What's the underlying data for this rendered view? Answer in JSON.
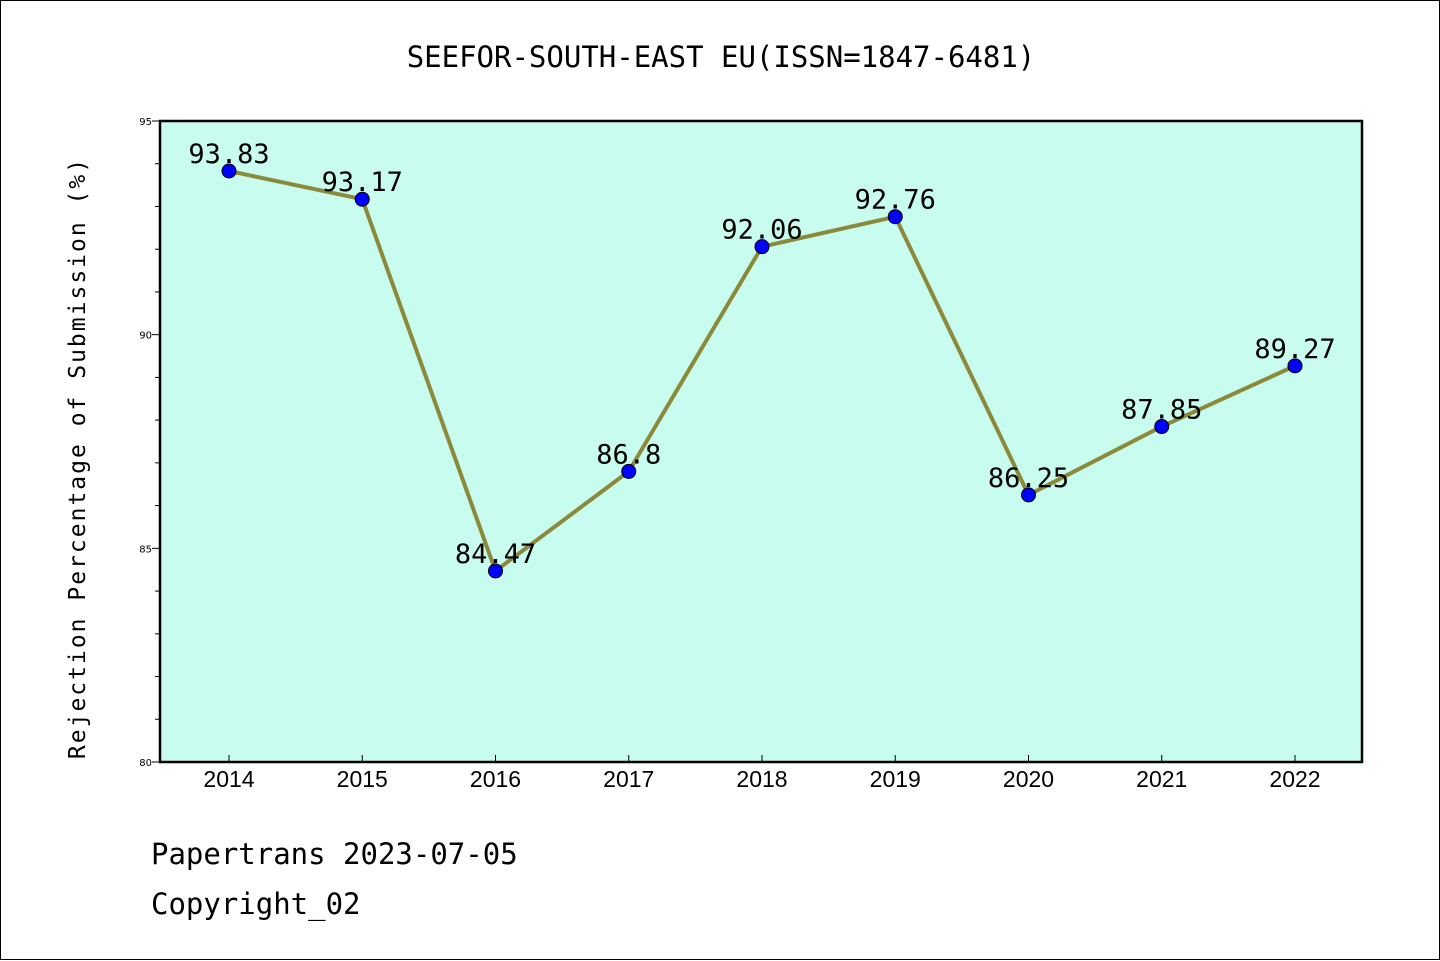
{
  "chart_data": {
    "type": "line",
    "title": "SEEFOR-SOUTH-EAST EU(ISSN=1847-6481)",
    "ylabel": "Rejection Percentage of Submission (%)",
    "xlabel": "",
    "categories": [
      "2014",
      "2015",
      "2016",
      "2017",
      "2018",
      "2019",
      "2020",
      "2021",
      "2022"
    ],
    "values": [
      93.83,
      93.17,
      84.47,
      86.8,
      92.06,
      92.76,
      86.25,
      87.85,
      89.27
    ],
    "data_labels": [
      "93.83",
      "93.17",
      "84.47",
      "86.8",
      "92.06",
      "92.76",
      "86.25",
      "87.85",
      "89.27"
    ],
    "ylim": [
      80,
      95
    ],
    "yticks": [
      80,
      85,
      90,
      95
    ],
    "grid": false,
    "colors": {
      "background": "#c8fcee",
      "line": "#8b8a3a",
      "marker": "#0000ff"
    }
  },
  "footer": {
    "date_text": "Papertrans 2023-07-05",
    "copyright_text": "Copyright_02"
  }
}
